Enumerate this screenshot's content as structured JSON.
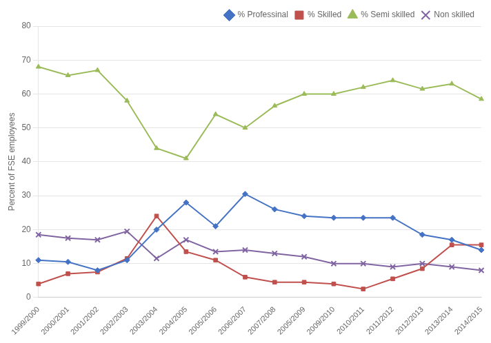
{
  "chart_data": {
    "type": "line",
    "categories": [
      "1999/2000",
      "2000/2001",
      "2001/2002",
      "2002/2003",
      "2003/2004",
      "2004/2005",
      "2005/2006",
      "2006/2007",
      "2007/2008",
      "2005/2009",
      "2009/2010",
      "2010/2011",
      "2011/2012",
      "2012/2013",
      "2013/2014",
      "2014/2015"
    ],
    "series": [
      {
        "name": "% Professinal",
        "color": "#4472C4",
        "marker": "diamond",
        "values": [
          11,
          10.5,
          8,
          11,
          20,
          28,
          21,
          30.5,
          26,
          24,
          23.5,
          23.5,
          23.5,
          18.5,
          17,
          14
        ]
      },
      {
        "name": "% Skilled",
        "color": "#C0504D",
        "marker": "square",
        "values": [
          4,
          7,
          7.5,
          11.5,
          24,
          13.5,
          11,
          6,
          4.5,
          4.5,
          4,
          2.5,
          5.5,
          8.5,
          15.5,
          15.5
        ]
      },
      {
        "name": "% Semi skilled",
        "color": "#9BBB59",
        "marker": "triangle",
        "values": [
          68,
          65.5,
          67,
          58,
          44,
          41,
          54,
          50,
          56.5,
          60,
          60,
          62,
          64,
          61.5,
          63,
          58.5
        ]
      },
      {
        "name": "Non skilled",
        "color": "#8064A2",
        "marker": "x",
        "values": [
          18.5,
          17.5,
          17,
          19.5,
          11.5,
          17,
          13.5,
          14,
          13,
          12,
          10,
          10,
          9,
          10,
          9,
          8
        ]
      }
    ],
    "ylabel": "Percent of FSE employees",
    "ylim": [
      0,
      80
    ],
    "yticks": [
      0,
      10,
      20,
      30,
      40,
      50,
      60,
      70,
      80
    ],
    "grid": "y",
    "legend": "upper right"
  }
}
